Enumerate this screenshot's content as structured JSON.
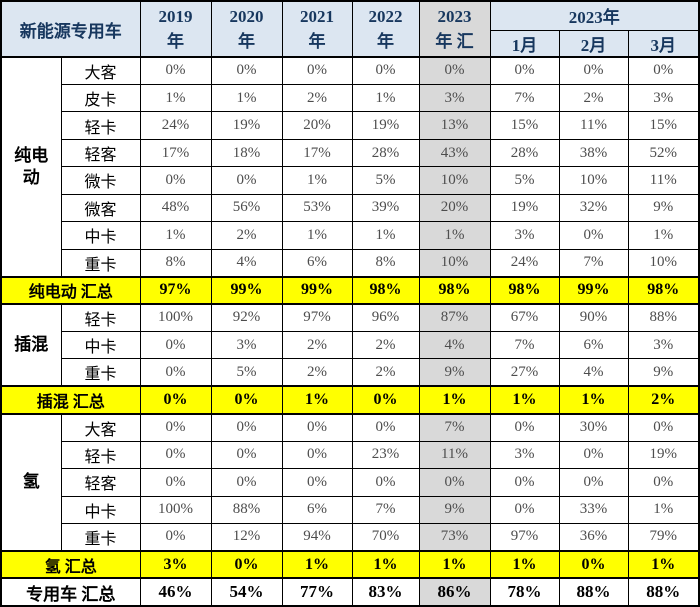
{
  "colors": {
    "header_bg": "#dce6f1",
    "header_text": "#17375e",
    "highlight_bg": "#d9d9d9",
    "summary_bg": "#ffff00",
    "value_text": "#4d4d4d"
  },
  "chart_data": {
    "type": "table",
    "corner_label": "新能源专用车",
    "columns": [
      "2019年",
      "2020年",
      "2021年",
      "2022年",
      "2023年汇",
      "2023年1月",
      "2023年2月",
      "2023年3月"
    ],
    "year_headers": [
      {
        "line1": "2019",
        "line2": "年"
      },
      {
        "line1": "2020",
        "line2": "年"
      },
      {
        "line1": "2021",
        "line2": "年"
      },
      {
        "line1": "2022",
        "line2": "年"
      },
      {
        "line1": "2023",
        "line2": "年 汇"
      }
    ],
    "month_group": {
      "label": "2023年",
      "months": [
        "1月",
        "2月",
        "3月"
      ]
    },
    "groups": [
      {
        "label": "纯电动",
        "rows": [
          {
            "label": "大客",
            "values": [
              "0%",
              "0%",
              "0%",
              "0%",
              "0%",
              "0%",
              "0%",
              "0%"
            ]
          },
          {
            "label": "皮卡",
            "values": [
              "1%",
              "1%",
              "2%",
              "1%",
              "3%",
              "7%",
              "2%",
              "3%"
            ]
          },
          {
            "label": "轻卡",
            "values": [
              "24%",
              "19%",
              "20%",
              "19%",
              "13%",
              "15%",
              "11%",
              "15%"
            ]
          },
          {
            "label": "轻客",
            "values": [
              "17%",
              "18%",
              "17%",
              "28%",
              "43%",
              "28%",
              "38%",
              "52%"
            ]
          },
          {
            "label": "微卡",
            "values": [
              "0%",
              "0%",
              "1%",
              "5%",
              "10%",
              "5%",
              "10%",
              "11%"
            ]
          },
          {
            "label": "微客",
            "values": [
              "48%",
              "56%",
              "53%",
              "39%",
              "20%",
              "19%",
              "32%",
              "9%"
            ]
          },
          {
            "label": "中卡",
            "values": [
              "1%",
              "2%",
              "1%",
              "1%",
              "1%",
              "3%",
              "0%",
              "1%"
            ]
          },
          {
            "label": "重卡",
            "values": [
              "8%",
              "4%",
              "6%",
              "8%",
              "10%",
              "24%",
              "7%",
              "10%"
            ]
          }
        ],
        "summary": {
          "label": "纯电动 汇总",
          "values": [
            "97%",
            "99%",
            "99%",
            "98%",
            "98%",
            "98%",
            "99%",
            "98%"
          ]
        }
      },
      {
        "label": "插混",
        "rows": [
          {
            "label": "轻卡",
            "values": [
              "100%",
              "92%",
              "97%",
              "96%",
              "87%",
              "67%",
              "90%",
              "88%"
            ]
          },
          {
            "label": "中卡",
            "values": [
              "0%",
              "3%",
              "2%",
              "2%",
              "4%",
              "7%",
              "6%",
              "3%"
            ]
          },
          {
            "label": "重卡",
            "values": [
              "0%",
              "5%",
              "2%",
              "2%",
              "9%",
              "27%",
              "4%",
              "9%"
            ]
          }
        ],
        "summary": {
          "label": "插混 汇总",
          "values": [
            "0%",
            "0%",
            "1%",
            "0%",
            "1%",
            "1%",
            "1%",
            "2%"
          ]
        }
      },
      {
        "label": "氢",
        "rows": [
          {
            "label": "大客",
            "values": [
              "0%",
              "0%",
              "0%",
              "0%",
              "7%",
              "0%",
              "30%",
              "0%"
            ]
          },
          {
            "label": "轻卡",
            "values": [
              "0%",
              "0%",
              "0%",
              "23%",
              "11%",
              "3%",
              "0%",
              "19%"
            ]
          },
          {
            "label": "轻客",
            "values": [
              "0%",
              "0%",
              "0%",
              "0%",
              "0%",
              "0%",
              "0%",
              "0%"
            ]
          },
          {
            "label": "中卡",
            "values": [
              "100%",
              "88%",
              "6%",
              "7%",
              "9%",
              "0%",
              "33%",
              "1%"
            ]
          },
          {
            "label": "重卡",
            "values": [
              "0%",
              "12%",
              "94%",
              "70%",
              "73%",
              "97%",
              "36%",
              "79%"
            ]
          }
        ],
        "summary": {
          "label": "氢 汇总",
          "values": [
            "3%",
            "0%",
            "1%",
            "1%",
            "1%",
            "1%",
            "0%",
            "1%"
          ]
        }
      }
    ],
    "total": {
      "label": "专用车 汇总",
      "values": [
        "46%",
        "54%",
        "77%",
        "83%",
        "86%",
        "78%",
        "88%",
        "88%"
      ]
    }
  }
}
